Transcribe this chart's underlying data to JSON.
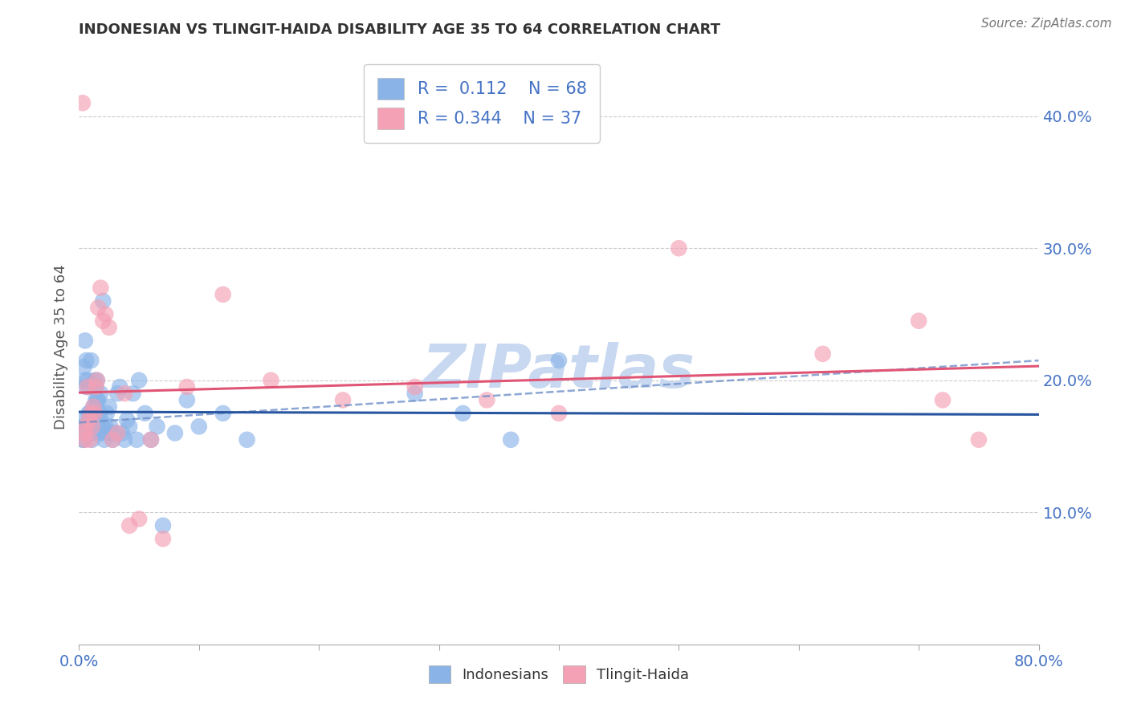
{
  "title": "INDONESIAN VS TLINGIT-HAIDA DISABILITY AGE 35 TO 64 CORRELATION CHART",
  "source": "Source: ZipAtlas.com",
  "xlabel_label": "Indonesians",
  "xlabel2_label": "Tlingit-Haida",
  "ylabel": "Disability Age 35 to 64",
  "xlim": [
    0.0,
    0.8
  ],
  "ylim": [
    0.0,
    0.45
  ],
  "xticks": [
    0.0,
    0.1,
    0.2,
    0.3,
    0.4,
    0.5,
    0.6,
    0.7,
    0.8
  ],
  "yticks": [
    0.1,
    0.2,
    0.3,
    0.4
  ],
  "r_indonesian": 0.112,
  "n_indonesian": 68,
  "r_tlingit": 0.344,
  "n_tlingit": 37,
  "indonesian_color": "#8ab4e8",
  "tlingit_color": "#f4a0b5",
  "indonesian_line_color": "#2855a0",
  "tlingit_line_color": "#e05575",
  "dashed_line_color": "#7090c8",
  "watermark": "ZIPatlas",
  "watermark_color": "#c8d8f0",
  "indonesian_x": [
    0.003,
    0.003,
    0.003,
    0.004,
    0.004,
    0.005,
    0.005,
    0.005,
    0.006,
    0.006,
    0.007,
    0.007,
    0.008,
    0.008,
    0.009,
    0.009,
    0.01,
    0.01,
    0.011,
    0.011,
    0.012,
    0.012,
    0.013,
    0.013,
    0.014,
    0.014,
    0.015,
    0.015,
    0.016,
    0.016,
    0.017,
    0.017,
    0.018,
    0.018,
    0.019,
    0.02,
    0.02,
    0.021,
    0.022,
    0.023,
    0.024,
    0.025,
    0.026,
    0.027,
    0.028,
    0.03,
    0.032,
    0.034,
    0.036,
    0.038,
    0.04,
    0.042,
    0.045,
    0.048,
    0.05,
    0.055,
    0.06,
    0.065,
    0.07,
    0.08,
    0.09,
    0.1,
    0.12,
    0.14,
    0.28,
    0.32,
    0.36,
    0.4
  ],
  "indonesian_y": [
    0.155,
    0.17,
    0.165,
    0.21,
    0.155,
    0.165,
    0.2,
    0.23,
    0.195,
    0.215,
    0.165,
    0.2,
    0.175,
    0.195,
    0.16,
    0.175,
    0.165,
    0.215,
    0.155,
    0.175,
    0.16,
    0.18,
    0.175,
    0.2,
    0.185,
    0.195,
    0.185,
    0.2,
    0.165,
    0.185,
    0.16,
    0.175,
    0.17,
    0.19,
    0.16,
    0.165,
    0.26,
    0.155,
    0.165,
    0.175,
    0.16,
    0.18,
    0.165,
    0.16,
    0.155,
    0.16,
    0.19,
    0.195,
    0.16,
    0.155,
    0.17,
    0.165,
    0.19,
    0.155,
    0.2,
    0.175,
    0.155,
    0.165,
    0.09,
    0.16,
    0.185,
    0.165,
    0.175,
    0.155,
    0.19,
    0.175,
    0.155,
    0.215
  ],
  "tlingit_x": [
    0.003,
    0.004,
    0.005,
    0.006,
    0.007,
    0.008,
    0.009,
    0.01,
    0.011,
    0.012,
    0.013,
    0.014,
    0.015,
    0.016,
    0.018,
    0.02,
    0.022,
    0.025,
    0.028,
    0.032,
    0.038,
    0.042,
    0.05,
    0.06,
    0.07,
    0.09,
    0.12,
    0.16,
    0.22,
    0.28,
    0.34,
    0.4,
    0.5,
    0.62,
    0.7,
    0.72,
    0.75
  ],
  "tlingit_y": [
    0.41,
    0.16,
    0.155,
    0.165,
    0.195,
    0.17,
    0.155,
    0.175,
    0.165,
    0.18,
    0.175,
    0.195,
    0.2,
    0.255,
    0.27,
    0.245,
    0.25,
    0.24,
    0.155,
    0.16,
    0.19,
    0.09,
    0.095,
    0.155,
    0.08,
    0.195,
    0.265,
    0.2,
    0.185,
    0.195,
    0.185,
    0.175,
    0.3,
    0.22,
    0.245,
    0.185,
    0.155
  ]
}
